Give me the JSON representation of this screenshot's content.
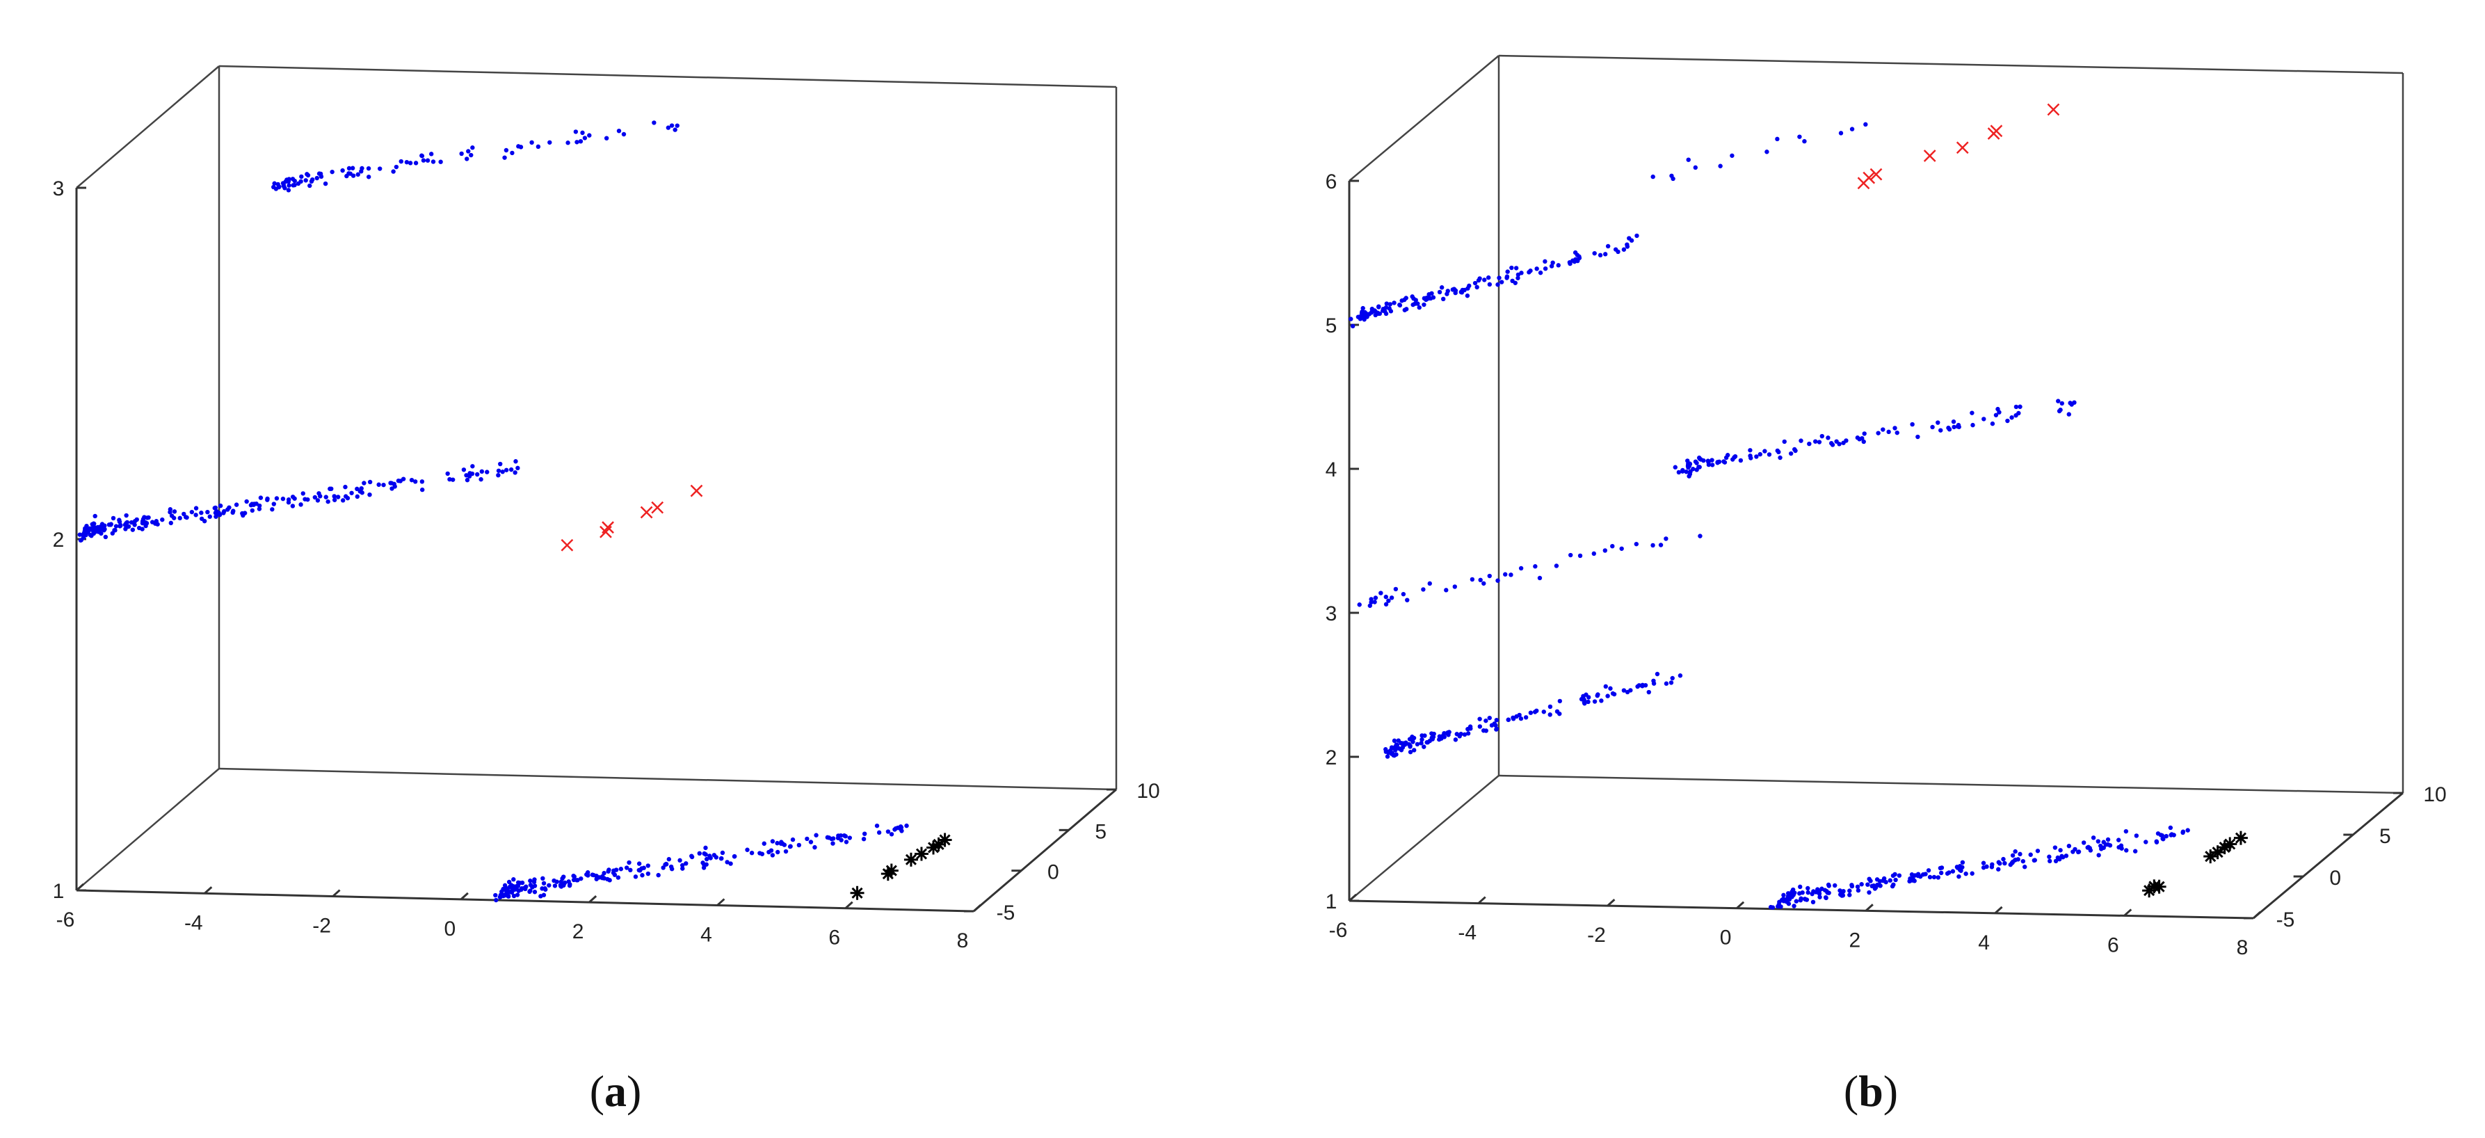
{
  "colors": {
    "blue_points": "#0000ee",
    "red_crosses": "#ee2222",
    "black_stars": "#000000",
    "axis": "#333333"
  },
  "chart_data": [
    {
      "type": "scatter",
      "panel_label_open": "(",
      "panel_label_letter": "a",
      "panel_label_close": ")",
      "title": "",
      "xlabel": "",
      "ylabel": "",
      "zlabel": "",
      "xlim": [
        -6,
        8
      ],
      "ylim": [
        -5,
        10
      ],
      "zlim": [
        1,
        3
      ],
      "x_ticks": [
        "-6",
        "-4",
        "-2",
        "0",
        "2",
        "4",
        "6",
        "8"
      ],
      "y_ticks": [
        "-5",
        "0",
        "5",
        "10"
      ],
      "z_ticks": [
        "1",
        "2",
        "3"
      ],
      "clusters": [
        {
          "marker": "dot",
          "z": 3,
          "x0": -3.0,
          "x1": 2.2,
          "count": 90
        },
        {
          "marker": "dot",
          "z": 2,
          "x0": -6.0,
          "x1": -0.5,
          "count": 220
        },
        {
          "marker": "cross",
          "z": 2,
          "x0": 1.5,
          "x1": 3.2,
          "count": 6
        },
        {
          "marker": "dot",
          "z": 1,
          "x0": 0.5,
          "x1": 5.5,
          "count": 210
        },
        {
          "marker": "star",
          "z": 1,
          "x0": 5.8,
          "x1": 6.4,
          "count": 8
        }
      ]
    },
    {
      "type": "scatter",
      "panel_label_open": "(",
      "panel_label_letter": "b",
      "panel_label_close": ")",
      "title": "",
      "xlabel": "",
      "ylabel": "",
      "zlabel": "",
      "xlim": [
        -6,
        8
      ],
      "ylim": [
        -5,
        10
      ],
      "zlim": [
        1,
        6
      ],
      "x_ticks": [
        "-6",
        "-4",
        "-2",
        "0",
        "2",
        "4",
        "6",
        "8"
      ],
      "y_ticks": [
        "-5",
        "0",
        "5",
        "10"
      ],
      "z_ticks": [
        "1",
        "2",
        "3",
        "4",
        "5",
        "6"
      ],
      "clusters": [
        {
          "marker": "dot",
          "z": 6,
          "x0": -1.5,
          "x1": 1.5,
          "count": 14
        },
        {
          "marker": "cross",
          "z": 6,
          "x0": 1.8,
          "x1": 3.4,
          "count": 8
        },
        {
          "marker": "dot",
          "z": 5,
          "x0": -6.0,
          "x1": -3.2,
          "count": 130
        },
        {
          "marker": "dot",
          "z": 4,
          "x0": -1.0,
          "x1": 4.2,
          "count": 110
        },
        {
          "marker": "dot",
          "z": 3,
          "x0": -6.0,
          "x1": -2.0,
          "count": 40
        },
        {
          "marker": "dot",
          "z": 2,
          "x0": -5.5,
          "x1": -2.5,
          "count": 140
        },
        {
          "marker": "dot",
          "z": 1,
          "x0": 0.5,
          "x1": 5.5,
          "count": 210
        },
        {
          "marker": "star",
          "z": 1,
          "x0": 5.8,
          "x1": 6.4,
          "count": 8
        }
      ]
    }
  ]
}
